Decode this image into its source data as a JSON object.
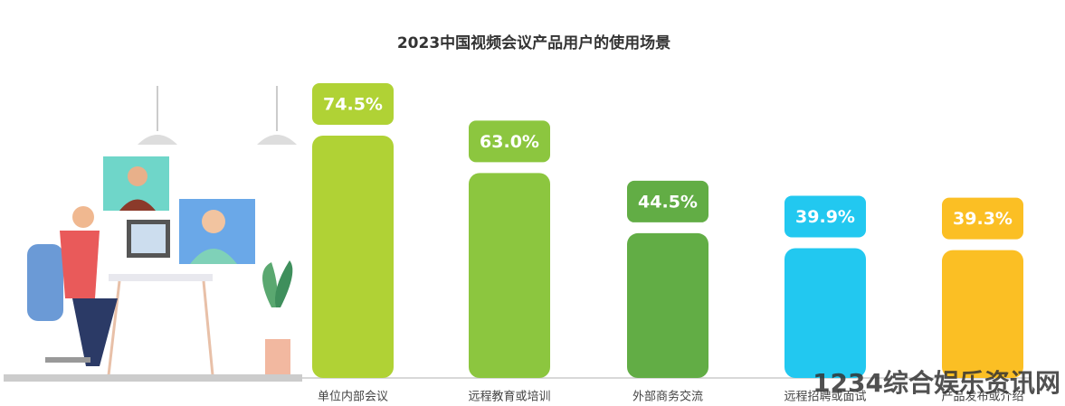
{
  "chart_data": {
    "type": "bar",
    "title": "2023中国视频会议产品用户的使用场景",
    "categories": [
      "单位内部会议",
      "远程教育或培训",
      "外部商务交流",
      "远程招聘或面试",
      "产品发布或介绍"
    ],
    "values": [
      74.5,
      63.0,
      44.5,
      39.9,
      39.3
    ],
    "value_labels": [
      "74.5%",
      "63.0%",
      "44.5%",
      "39.9%",
      "39.3%"
    ],
    "colors": [
      "#b0d235",
      "#8cc63f",
      "#62ad45",
      "#22c8f0",
      "#fbbf24"
    ]
  },
  "watermark": "1234综合娱乐资讯网"
}
